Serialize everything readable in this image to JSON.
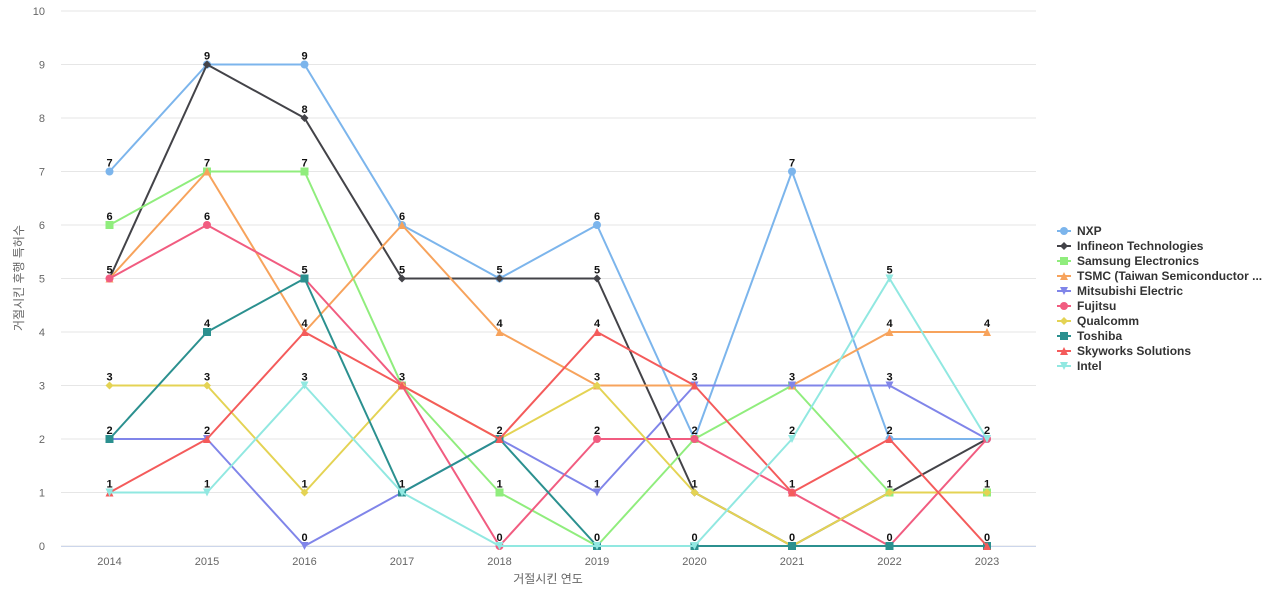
{
  "chart_data": {
    "type": "line",
    "title": "",
    "xlabel": "거절시킨 연도",
    "ylabel": "거절시킨 후행 특허수",
    "x": [
      "2014",
      "2015",
      "2016",
      "2017",
      "2018",
      "2019",
      "2020",
      "2021",
      "2022",
      "2023"
    ],
    "ylim": [
      0,
      10
    ],
    "yticks": [
      0,
      1,
      2,
      3,
      4,
      5,
      6,
      7,
      8,
      9,
      10
    ],
    "grid": true,
    "legend_position": "right",
    "series": [
      {
        "name": "NXP",
        "color": "#7cb5ec",
        "marker": "circle",
        "values": [
          7,
          9,
          9,
          6,
          5,
          6,
          2,
          7,
          2,
          2
        ]
      },
      {
        "name": "Infineon Technologies",
        "color": "#434348",
        "marker": "diamond",
        "values": [
          5,
          9,
          8,
          5,
          5,
          5,
          1,
          0,
          1,
          2
        ]
      },
      {
        "name": "Samsung Electronics",
        "color": "#90ed7d",
        "marker": "square",
        "values": [
          6,
          7,
          7,
          3,
          1,
          0,
          2,
          3,
          1,
          1
        ]
      },
      {
        "name": "TSMC (Taiwan Semiconductor ...",
        "color": "#f7a35c",
        "marker": "triangle",
        "values": [
          5,
          7,
          4,
          6,
          4,
          3,
          3,
          3,
          4,
          4
        ]
      },
      {
        "name": "Mitsubishi Electric",
        "color": "#8085e9",
        "marker": "triangle-down",
        "values": [
          2,
          2,
          0,
          1,
          2,
          1,
          3,
          3,
          3,
          2
        ]
      },
      {
        "name": "Fujitsu",
        "color": "#f15c80",
        "marker": "circle",
        "values": [
          5,
          6,
          5,
          3,
          0,
          2,
          2,
          1,
          0,
          2
        ]
      },
      {
        "name": "Qualcomm",
        "color": "#e4d354",
        "marker": "diamond",
        "values": [
          3,
          3,
          1,
          3,
          2,
          3,
          1,
          0,
          1,
          1
        ]
      },
      {
        "name": "Toshiba",
        "color": "#2b908f",
        "marker": "square",
        "values": [
          2,
          4,
          5,
          1,
          2,
          0,
          0,
          0,
          0,
          0
        ]
      },
      {
        "name": "Skyworks Solutions",
        "color": "#f45b5b",
        "marker": "triangle",
        "values": [
          1,
          2,
          4,
          3,
          2,
          4,
          3,
          1,
          2,
          0
        ]
      },
      {
        "name": "Intel",
        "color": "#91e8e1",
        "marker": "triangle-down",
        "values": [
          1,
          1,
          3,
          1,
          0,
          0,
          0,
          2,
          5,
          2
        ]
      }
    ],
    "data_labels": [
      {
        "category": "2014",
        "values": [
          7,
          6,
          5,
          3,
          2,
          1
        ]
      },
      {
        "category": "2015",
        "values": [
          9,
          7,
          6,
          4,
          3,
          2,
          1
        ]
      },
      {
        "category": "2016",
        "values": [
          9,
          8,
          7,
          5,
          4,
          3,
          1,
          0
        ]
      },
      {
        "category": "2017",
        "values": [
          6,
          5,
          3,
          1
        ]
      },
      {
        "category": "2018",
        "values": [
          5,
          4,
          2,
          1,
          0
        ]
      },
      {
        "category": "2019",
        "values": [
          6,
          5,
          4,
          3,
          2,
          1,
          0
        ]
      },
      {
        "category": "2020",
        "values": [
          3,
          2,
          1,
          0
        ]
      },
      {
        "category": "2021",
        "values": [
          7,
          3,
          2,
          1,
          0
        ]
      },
      {
        "category": "2022",
        "values": [
          5,
          4,
          3,
          2,
          1,
          0
        ]
      },
      {
        "category": "2023",
        "values": [
          4,
          2,
          1,
          0
        ]
      }
    ]
  }
}
